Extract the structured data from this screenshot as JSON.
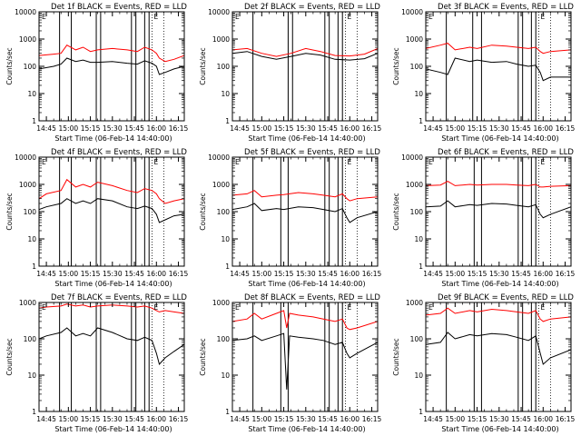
{
  "chart_data": [
    {
      "type": "line",
      "title": "Det 1f BLACK = Events, RED = LLD",
      "xlabel": "Start Time (06-Feb-14 14:40:00)",
      "ylabel": "Counts/sec",
      "yscale": "log",
      "ylim": [
        1,
        10000
      ],
      "xlim": [
        "14:40",
        "16:19"
      ],
      "x_ticks": [
        "14:45",
        "15:00",
        "15:15",
        "15:30",
        "15:45",
        "16:00",
        "16:15"
      ],
      "y_ticks": [
        "1",
        "10",
        "100",
        "1000",
        "10000"
      ],
      "annotations": [
        "E"
      ],
      "x": [
        "14:40",
        "14:50",
        "14:55",
        "14:59",
        "15:05",
        "15:10",
        "15:15",
        "15:20",
        "15:30",
        "15:40",
        "15:47",
        "15:52",
        "15:57",
        "16:00",
        "16:02",
        "16:06",
        "16:12",
        "16:19"
      ],
      "series": [
        {
          "color": "#ff0000",
          "values": [
            250,
            280,
            300,
            600,
            400,
            500,
            350,
            400,
            450,
            400,
            350,
            500,
            400,
            300,
            200,
            150,
            180,
            250
          ]
        },
        {
          "color": "#000000",
          "values": [
            80,
            100,
            120,
            200,
            150,
            170,
            140,
            140,
            150,
            130,
            120,
            160,
            130,
            100,
            50,
            60,
            80,
            100
          ]
        }
      ],
      "vlines_solid": [
        "14:54",
        "15:02",
        "15:19",
        "15:22",
        "15:43",
        "15:46",
        "15:52",
        "15:55"
      ],
      "vlines_dotted": [
        "15:57",
        "16:05"
      ]
    },
    {
      "type": "line",
      "title": "Det 2f BLACK = Events, RED = LLD",
      "xlabel": "Start Time (06-Feb-14 14:40:00)",
      "ylabel": "Counts/sec",
      "yscale": "log",
      "ylim": [
        1,
        10000
      ],
      "xlim": [
        "14:40",
        "16:19"
      ],
      "x_ticks": [
        "14:45",
        "15:00",
        "15:15",
        "15:30",
        "15:45",
        "16:00",
        "16:15"
      ],
      "y_ticks": [
        "1",
        "10",
        "100",
        "1000",
        "10000"
      ],
      "annotations": [
        "E"
      ],
      "x": [
        "14:40",
        "14:50",
        "15:00",
        "15:10",
        "15:20",
        "15:30",
        "15:40",
        "15:50",
        "16:00",
        "16:10",
        "16:19"
      ],
      "series": [
        {
          "color": "#ff0000",
          "values": [
            400,
            450,
            300,
            230,
            300,
            450,
            350,
            250,
            240,
            280,
            450
          ]
        },
        {
          "color": "#000000",
          "values": [
            300,
            350,
            230,
            180,
            230,
            300,
            260,
            180,
            170,
            190,
            300
          ]
        }
      ],
      "vlines_solid": [
        "14:54",
        "15:18",
        "15:21",
        "15:43",
        "15:46",
        "15:52",
        "15:55"
      ],
      "vlines_dotted": [
        "15:57",
        "16:05"
      ]
    },
    {
      "type": "line",
      "title": "Det 3f BLACK = Events, RED = LLD",
      "xlabel": "Start Time (06-Feb-14 14:40:00)",
      "ylabel": "Counts/sec",
      "yscale": "log",
      "ylim": [
        1,
        10000
      ],
      "xlim": [
        "14:40",
        "16:19"
      ],
      "x_ticks": [
        "14:45",
        "15:00",
        "15:15",
        "15:30",
        "15:45",
        "16:00",
        "16:15"
      ],
      "y_ticks": [
        "1",
        "10",
        "100",
        "1000",
        "10000"
      ],
      "annotations": [
        "E"
      ],
      "x": [
        "14:40",
        "14:50",
        "14:55",
        "15:00",
        "15:10",
        "15:15",
        "15:25",
        "15:35",
        "15:42",
        "15:50",
        "15:55",
        "15:58",
        "16:00",
        "16:05",
        "16:19"
      ],
      "series": [
        {
          "color": "#ff0000",
          "values": [
            450,
            600,
            700,
            400,
            500,
            450,
            600,
            550,
            500,
            450,
            500,
            350,
            300,
            350,
            400
          ]
        },
        {
          "color": "#000000",
          "values": [
            80,
            60,
            50,
            200,
            150,
            170,
            140,
            150,
            120,
            100,
            110,
            60,
            30,
            40,
            40
          ]
        }
      ],
      "vlines_solid": [
        "14:54",
        "15:12",
        "15:18",
        "15:43",
        "15:46",
        "15:52",
        "15:55"
      ],
      "vlines_dotted": [
        "15:57",
        "16:05"
      ]
    },
    {
      "type": "line",
      "title": "Det 4f BLACK = Events, RED = LLD",
      "xlabel": "Start Time (06-Feb-14 14:40:00)",
      "ylabel": "Counts/sec",
      "yscale": "log",
      "ylim": [
        1,
        10000
      ],
      "xlim": [
        "14:40",
        "16:19"
      ],
      "x_ticks": [
        "14:45",
        "15:00",
        "15:15",
        "15:30",
        "15:45",
        "16:00",
        "16:15"
      ],
      "y_ticks": [
        "1",
        "10",
        "100",
        "1000",
        "10000"
      ],
      "annotations": [
        "E"
      ],
      "x": [
        "14:40",
        "14:45",
        "14:55",
        "14:59",
        "15:05",
        "15:10",
        "15:15",
        "15:20",
        "15:30",
        "15:40",
        "15:47",
        "15:52",
        "15:57",
        "16:00",
        "16:02",
        "16:06",
        "16:12",
        "16:19"
      ],
      "series": [
        {
          "color": "#ff0000",
          "values": [
            300,
            450,
            600,
            1500,
            800,
            1000,
            800,
            1200,
            900,
            600,
            500,
            700,
            600,
            450,
            300,
            200,
            250,
            300
          ]
        },
        {
          "color": "#000000",
          "values": [
            120,
            150,
            200,
            300,
            200,
            250,
            200,
            300,
            250,
            150,
            130,
            160,
            130,
            80,
            40,
            50,
            70,
            80
          ]
        }
      ],
      "vlines_solid": [
        "14:54",
        "15:02",
        "15:19",
        "15:22",
        "15:43",
        "15:46",
        "15:52",
        "15:55"
      ],
      "vlines_dotted": [
        "15:57",
        "16:05"
      ]
    },
    {
      "type": "line",
      "title": "Det 5f BLACK = Events, RED = LLD",
      "xlabel": "Start Time (06-Feb-14 14:40:00)",
      "ylabel": "Counts/sec",
      "yscale": "log",
      "ylim": [
        1,
        10000
      ],
      "xlim": [
        "14:40",
        "16:19"
      ],
      "x_ticks": [
        "14:45",
        "15:00",
        "15:15",
        "15:30",
        "15:45",
        "16:00",
        "16:15"
      ],
      "y_ticks": [
        "1",
        "10",
        "100",
        "1000",
        "10000"
      ],
      "annotations": [
        "E"
      ],
      "x": [
        "14:40",
        "14:50",
        "14:55",
        "15:00",
        "15:10",
        "15:15",
        "15:25",
        "15:35",
        "15:42",
        "15:50",
        "15:55",
        "15:58",
        "16:00",
        "16:05",
        "16:19"
      ],
      "series": [
        {
          "color": "#ff0000",
          "values": [
            400,
            450,
            600,
            350,
            400,
            420,
            500,
            450,
            400,
            350,
            450,
            300,
            250,
            300,
            350
          ]
        },
        {
          "color": "#000000",
          "values": [
            120,
            150,
            200,
            110,
            130,
            120,
            150,
            140,
            120,
            100,
            130,
            60,
            40,
            60,
            100
          ]
        }
      ],
      "vlines_solid": [
        "14:54",
        "15:13",
        "15:18",
        "15:43",
        "15:46",
        "15:52",
        "15:55"
      ],
      "vlines_dotted": [
        "15:57",
        "16:05"
      ]
    },
    {
      "type": "line",
      "title": "Det 6f BLACK = Events, RED = LLD",
      "xlabel": "Start Time (06-Feb-14 14:40:00)",
      "ylabel": "Counts/sec",
      "yscale": "log",
      "ylim": [
        1,
        10000
      ],
      "xlim": [
        "14:40",
        "16:19"
      ],
      "x_ticks": [
        "14:45",
        "15:00",
        "15:15",
        "15:30",
        "15:45",
        "16:00",
        "16:15"
      ],
      "y_ticks": [
        "1",
        "10",
        "100",
        "1000",
        "10000"
      ],
      "annotations": [
        "E"
      ],
      "x": [
        "14:40",
        "14:50",
        "14:55",
        "15:00",
        "15:10",
        "15:15",
        "15:25",
        "15:35",
        "15:42",
        "15:50",
        "15:55",
        "15:58",
        "16:00",
        "16:05",
        "16:19"
      ],
      "series": [
        {
          "color": "#ff0000",
          "values": [
            900,
            950,
            1300,
            900,
            1000,
            950,
            1000,
            1000,
            950,
            900,
            1000,
            800,
            800,
            850,
            900
          ]
        },
        {
          "color": "#000000",
          "values": [
            150,
            160,
            250,
            150,
            180,
            170,
            200,
            190,
            170,
            150,
            180,
            80,
            60,
            80,
            150
          ]
        }
      ],
      "vlines_solid": [
        "14:54",
        "15:13",
        "15:18",
        "15:43",
        "15:46",
        "15:52",
        "15:55"
      ],
      "vlines_dotted": [
        "15:57",
        "16:05"
      ]
    },
    {
      "type": "line",
      "title": "Det 7f BLACK = Events, RED = LLD",
      "xlabel": "Start Time (06-Feb-14 14:40:00)",
      "ylabel": "Counts/sec",
      "yscale": "log",
      "ylim": [
        1,
        1000
      ],
      "xlim": [
        "14:40",
        "16:19"
      ],
      "x_ticks": [
        "14:45",
        "15:00",
        "15:15",
        "15:30",
        "15:45",
        "16:00",
        "16:15"
      ],
      "y_ticks": [
        "1",
        "10",
        "100",
        "1000"
      ],
      "annotations": [
        "E"
      ],
      "x": [
        "14:40",
        "14:45",
        "14:55",
        "14:59",
        "15:05",
        "15:10",
        "15:15",
        "15:20",
        "15:30",
        "15:40",
        "15:47",
        "15:52",
        "15:57",
        "16:00",
        "16:02",
        "16:06",
        "16:12",
        "16:19"
      ],
      "series": [
        {
          "color": "#ff0000",
          "values": [
            700,
            750,
            800,
            900,
            800,
            850,
            750,
            800,
            850,
            800,
            750,
            800,
            700,
            600,
            550,
            600,
            550,
            500
          ]
        },
        {
          "color": "#000000",
          "values": [
            100,
            120,
            150,
            200,
            120,
            140,
            120,
            200,
            150,
            100,
            90,
            110,
            90,
            40,
            20,
            30,
            45,
            70
          ]
        }
      ],
      "vlines_solid": [
        "14:54",
        "15:02",
        "15:19",
        "15:22",
        "15:43",
        "15:46",
        "15:52",
        "15:55"
      ],
      "vlines_dotted": [
        "15:57",
        "16:05"
      ]
    },
    {
      "type": "line",
      "title": "Det 8f BLACK = Events, RED = LLD",
      "xlabel": "Start Time (06-Feb-14 14:40:00)",
      "ylabel": "Counts/sec",
      "yscale": "log",
      "ylim": [
        1,
        1000
      ],
      "xlim": [
        "14:40",
        "16:19"
      ],
      "x_ticks": [
        "14:45",
        "15:00",
        "15:15",
        "15:30",
        "15:45",
        "16:00",
        "16:15"
      ],
      "y_ticks": [
        "1",
        "10",
        "100",
        "1000"
      ],
      "annotations": [
        "E"
      ],
      "x": [
        "14:40",
        "14:50",
        "14:55",
        "15:00",
        "15:10",
        "15:15",
        "15:17",
        "15:19",
        "15:25",
        "15:35",
        "15:42",
        "15:50",
        "15:55",
        "15:58",
        "16:00",
        "16:05",
        "16:19"
      ],
      "series": [
        {
          "color": "#ff0000",
          "values": [
            300,
            350,
            500,
            350,
            500,
            600,
            200,
            500,
            450,
            400,
            350,
            300,
            350,
            200,
            180,
            200,
            300
          ]
        },
        {
          "color": "#000000",
          "values": [
            90,
            100,
            120,
            90,
            120,
            140,
            4,
            120,
            110,
            100,
            90,
            70,
            80,
            40,
            30,
            40,
            80
          ]
        }
      ],
      "vlines_solid": [
        "14:54",
        "15:13",
        "15:18",
        "15:43",
        "15:46",
        "15:52",
        "15:55"
      ],
      "vlines_dotted": [
        "15:57",
        "16:05"
      ]
    },
    {
      "type": "line",
      "title": "Det 9f BLACK = Events, RED = LLD",
      "xlabel": "Start Time (06-Feb-14 14:40:00)",
      "ylabel": "Counts/sec",
      "yscale": "log",
      "ylim": [
        1,
        1000
      ],
      "xlim": [
        "14:40",
        "16:19"
      ],
      "x_ticks": [
        "14:45",
        "15:00",
        "15:15",
        "15:30",
        "15:45",
        "16:00",
        "16:15"
      ],
      "y_ticks": [
        "1",
        "10",
        "100",
        "1000"
      ],
      "annotations": [
        "E"
      ],
      "x": [
        "14:40",
        "14:50",
        "14:55",
        "15:00",
        "15:10",
        "15:15",
        "15:25",
        "15:35",
        "15:42",
        "15:50",
        "15:55",
        "15:58",
        "16:00",
        "16:05",
        "16:19"
      ],
      "series": [
        {
          "color": "#ff0000",
          "values": [
            450,
            500,
            700,
            500,
            600,
            550,
            650,
            600,
            550,
            500,
            600,
            350,
            300,
            350,
            400
          ]
        },
        {
          "color": "#000000",
          "values": [
            70,
            80,
            150,
            100,
            130,
            120,
            140,
            130,
            110,
            90,
            120,
            40,
            20,
            30,
            50
          ]
        }
      ],
      "vlines_solid": [
        "14:54",
        "15:13",
        "15:18",
        "15:43",
        "15:46",
        "15:52",
        "15:55"
      ],
      "vlines_dotted": [
        "15:57",
        "16:05"
      ]
    }
  ]
}
